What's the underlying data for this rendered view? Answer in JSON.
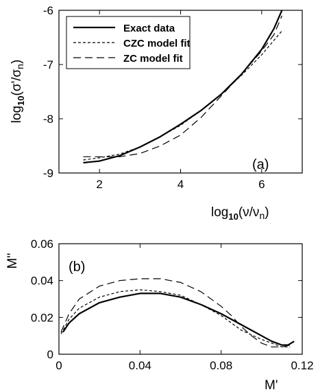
{
  "chart_data": [
    {
      "type": "line",
      "panel_label": "(a)",
      "xlabel": {
        "main": "log",
        "sub": "10",
        "rest": "(ν/ν",
        "subn": "n",
        "close": ")"
      },
      "ylabel": {
        "main": "log",
        "sub": "10",
        "rest": "(σ'/σ",
        "subn": "n",
        "close": ")"
      },
      "xlim": [
        1,
        7
      ],
      "ylim": [
        -9,
        -6
      ],
      "xticks": [
        2,
        4,
        6
      ],
      "yticks": [
        -9,
        -8,
        -7,
        -6
      ],
      "xtick_labels": [
        "2",
        "4",
        "6"
      ],
      "ytick_labels": [
        "-9",
        "-8",
        "-7",
        "-6"
      ],
      "legend": {
        "position": "top-left",
        "entries": [
          "Exact data",
          "CZC model fit",
          "ZC model fit"
        ]
      },
      "series": [
        {
          "name": "Exact data",
          "style": "solid",
          "x": [
            1.6,
            2.0,
            2.5,
            3.0,
            3.5,
            4.0,
            4.5,
            5.0,
            5.5,
            6.0,
            6.3,
            6.5
          ],
          "y": [
            -8.81,
            -8.78,
            -8.68,
            -8.52,
            -8.33,
            -8.1,
            -7.85,
            -7.55,
            -7.18,
            -6.72,
            -6.34,
            -6.0
          ]
        },
        {
          "name": "CZC model fit",
          "style": "dashed-short",
          "x": [
            1.6,
            2.0,
            2.5,
            3.0,
            3.5,
            4.0,
            4.5,
            5.0,
            5.5,
            6.0,
            6.5
          ],
          "y": [
            -8.76,
            -8.72,
            -8.65,
            -8.52,
            -8.33,
            -8.12,
            -7.85,
            -7.55,
            -7.2,
            -6.82,
            -6.38
          ]
        },
        {
          "name": "ZC model fit",
          "style": "dashed-long",
          "x": [
            1.6,
            2.0,
            2.5,
            3.0,
            3.5,
            4.0,
            4.5,
            5.0,
            5.5,
            6.0,
            6.3,
            6.5
          ],
          "y": [
            -8.7,
            -8.7,
            -8.7,
            -8.64,
            -8.5,
            -8.3,
            -7.98,
            -7.58,
            -7.18,
            -6.75,
            -6.45,
            -6.1
          ]
        }
      ]
    },
    {
      "type": "line",
      "panel_label": "(b)",
      "xlabel": "M'",
      "ylabel": "M''",
      "xlim": [
        0,
        0.12
      ],
      "ylim": [
        0,
        0.06
      ],
      "xticks": [
        0,
        0.04,
        0.08,
        0.12
      ],
      "yticks": [
        0,
        0.02,
        0.04,
        0.06
      ],
      "xtick_labels": [
        "0",
        "0.04",
        "0.08",
        "0.12"
      ],
      "ytick_labels": [
        "0",
        "0.02",
        "0.04",
        "0.06"
      ],
      "series": [
        {
          "name": "Exact data",
          "style": "solid",
          "x": [
            0.002,
            0.005,
            0.01,
            0.02,
            0.03,
            0.04,
            0.05,
            0.06,
            0.07,
            0.08,
            0.09,
            0.1,
            0.105,
            0.11,
            0.113,
            0.116
          ],
          "y": [
            0.012,
            0.017,
            0.022,
            0.028,
            0.031,
            0.033,
            0.033,
            0.031,
            0.027,
            0.022,
            0.016,
            0.01,
            0.007,
            0.005,
            0.005,
            0.007
          ]
        },
        {
          "name": "CZC model fit",
          "style": "dashed-short",
          "x": [
            0.001,
            0.005,
            0.01,
            0.02,
            0.03,
            0.04,
            0.05,
            0.06,
            0.07,
            0.08,
            0.09,
            0.1,
            0.11,
            0.114
          ],
          "y": [
            0.011,
            0.019,
            0.025,
            0.031,
            0.034,
            0.035,
            0.034,
            0.032,
            0.027,
            0.021,
            0.013,
            0.008,
            0.004,
            0.004
          ]
        },
        {
          "name": "ZC model fit",
          "style": "dashed-long",
          "x": [
            0.001,
            0.005,
            0.01,
            0.02,
            0.03,
            0.04,
            0.05,
            0.06,
            0.07,
            0.08,
            0.085,
            0.09,
            0.095,
            0.1,
            0.105,
            0.11,
            0.114
          ],
          "y": [
            0.012,
            0.022,
            0.03,
            0.037,
            0.04,
            0.041,
            0.041,
            0.039,
            0.034,
            0.026,
            0.021,
            0.015,
            0.01,
            0.006,
            0.004,
            0.004,
            0.005
          ]
        }
      ]
    }
  ]
}
